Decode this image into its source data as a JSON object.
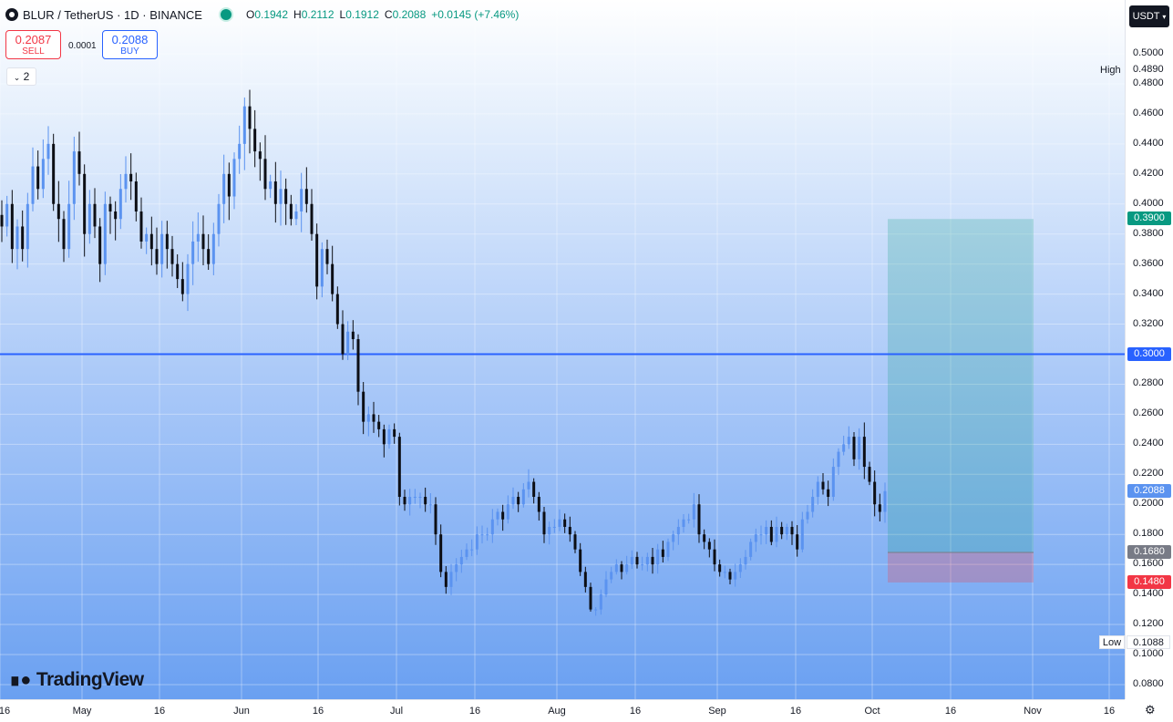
{
  "header": {
    "symbol": "BLUR / TetherUS · 1D · BINANCE",
    "o_key": "O",
    "o_val": "0.1942",
    "h_key": "H",
    "h_val": "0.2112",
    "l_key": "L",
    "l_val": "0.1912",
    "c_key": "C",
    "c_val": "0.2088",
    "change": "+0.0145 (+7.46%)"
  },
  "trade": {
    "sell_price": "0.2087",
    "sell_label": "SELL",
    "spread": "0.0001",
    "buy_price": "0.2088",
    "buy_label": "BUY"
  },
  "indicator_toggle": "2",
  "currency": "USDT",
  "brand": "TradingView",
  "colors": {
    "up": "#5b93f0",
    "down": "#0c0e14",
    "horizontal_line": "#2962ff",
    "target_label": "#089981",
    "stop_label": "#f23645",
    "last_price_label": "#5b93f0",
    "entry_label": "#787b86"
  },
  "chart_data": {
    "type": "candlestick",
    "title": "BLUR / TetherUS · 1D · BINANCE",
    "ylim": [
      0.07,
      0.515
    ],
    "x_ticks": [
      "16",
      "May",
      "16",
      "Jun",
      "16",
      "Jul",
      "16",
      "Aug",
      "16",
      "Sep",
      "16",
      "Oct",
      "16",
      "Nov",
      "16"
    ],
    "y_ticks": [
      "0.5000",
      "0.4800",
      "0.4600",
      "0.4400",
      "0.4200",
      "0.4000",
      "0.3800",
      "0.3600",
      "0.3400",
      "0.3200",
      "0.3000",
      "0.2800",
      "0.2600",
      "0.2400",
      "0.2200",
      "0.2000",
      "0.1800",
      "0.1600",
      "0.1400",
      "0.1200",
      "0.1000",
      "0.0800"
    ],
    "horizontal_line": 0.3,
    "high": {
      "label": "High",
      "value": "0.4890"
    },
    "low": {
      "label": "Low",
      "value": "0.1088"
    },
    "position": {
      "entry": 0.168,
      "target": 0.39,
      "stop": 0.148,
      "entry_label": "0.1680",
      "target_label": "0.3900",
      "stop_label": "0.1480",
      "start_day": 168,
      "end_day": 198
    },
    "last_price": {
      "value": 0.2088,
      "label": "0.2088"
    },
    "line_label": "0.3000",
    "closes": [
      0.385,
      0.4,
      0.37,
      0.385,
      0.37,
      0.4,
      0.425,
      0.41,
      0.43,
      0.44,
      0.4,
      0.39,
      0.37,
      0.4,
      0.435,
      0.42,
      0.38,
      0.4,
      0.385,
      0.36,
      0.4,
      0.395,
      0.39,
      0.41,
      0.42,
      0.415,
      0.395,
      0.375,
      0.38,
      0.37,
      0.36,
      0.38,
      0.37,
      0.36,
      0.35,
      0.34,
      0.36,
      0.375,
      0.38,
      0.37,
      0.36,
      0.38,
      0.4,
      0.42,
      0.405,
      0.43,
      0.44,
      0.465,
      0.45,
      0.435,
      0.43,
      0.41,
      0.415,
      0.4,
      0.41,
      0.4,
      0.39,
      0.395,
      0.41,
      0.4,
      0.38,
      0.345,
      0.37,
      0.36,
      0.34,
      0.32,
      0.3,
      0.315,
      0.31,
      0.275,
      0.255,
      0.26,
      0.255,
      0.25,
      0.24,
      0.25,
      0.245,
      0.205,
      0.2,
      0.205,
      0.205,
      0.205,
      0.2,
      0.2,
      0.18,
      0.155,
      0.145,
      0.155,
      0.16,
      0.165,
      0.17,
      0.17,
      0.18,
      0.18,
      0.18,
      0.19,
      0.195,
      0.19,
      0.2,
      0.205,
      0.2,
      0.21,
      0.215,
      0.205,
      0.195,
      0.18,
      0.185,
      0.185,
      0.19,
      0.185,
      0.18,
      0.17,
      0.155,
      0.145,
      0.13,
      0.13,
      0.14,
      0.15,
      0.155,
      0.16,
      0.155,
      0.16,
      0.165,
      0.16,
      0.16,
      0.165,
      0.16,
      0.17,
      0.165,
      0.175,
      0.18,
      0.185,
      0.19,
      0.19,
      0.2,
      0.18,
      0.175,
      0.17,
      0.16,
      0.155,
      0.155,
      0.15,
      0.155,
      0.16,
      0.165,
      0.175,
      0.18,
      0.18,
      0.185,
      0.175,
      0.185,
      0.18,
      0.185,
      0.18,
      0.17,
      0.19,
      0.195,
      0.205,
      0.215,
      0.21,
      0.205,
      0.225,
      0.235,
      0.24,
      0.245,
      0.23,
      0.245,
      0.225,
      0.215,
      0.2,
      0.195,
      0.2088
    ]
  }
}
